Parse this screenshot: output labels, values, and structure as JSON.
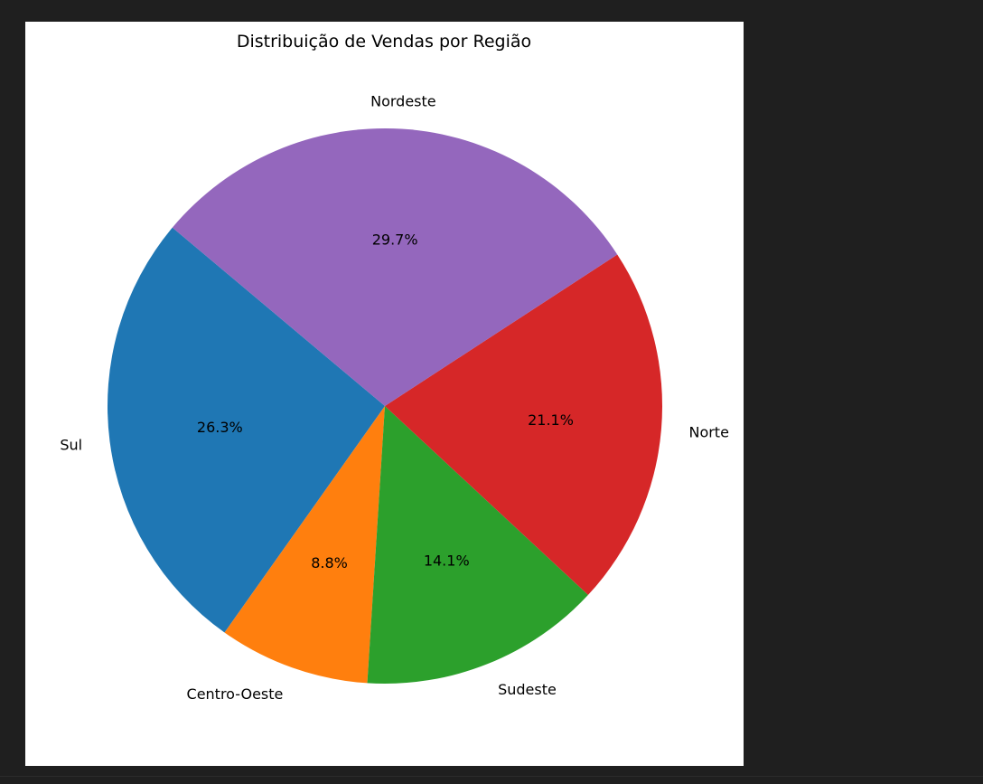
{
  "theme": {
    "page_background": "#1f1f1f",
    "figure_background": "#ffffff"
  },
  "chart_data": {
    "type": "pie",
    "title": "Distribuição de Vendas por Região",
    "start_angle_deg": 140,
    "direction": "counterclockwise",
    "slices": [
      {
        "label": "Sul",
        "value": 26.3,
        "pct_label": "26.3%",
        "color": "#1f77b4"
      },
      {
        "label": "Centro-Oeste",
        "value": 8.8,
        "pct_label": "8.8%",
        "color": "#ff7f0e"
      },
      {
        "label": "Sudeste",
        "value": 14.1,
        "pct_label": "14.1%",
        "color": "#2ca02c"
      },
      {
        "label": "Norte",
        "value": 21.1,
        "pct_label": "21.1%",
        "color": "#d62728"
      },
      {
        "label": "Nordeste",
        "value": 29.7,
        "pct_label": "29.7%",
        "color": "#9467bd"
      }
    ]
  }
}
